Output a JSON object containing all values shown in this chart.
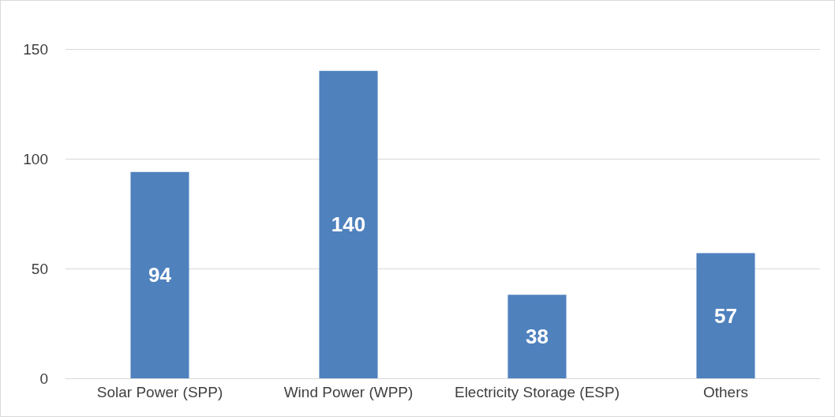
{
  "chart_data": {
    "type": "bar",
    "categories": [
      "Solar Power (SPP)",
      "Wind Power (WPP)",
      "Electricity Storage (ESP)",
      "Others"
    ],
    "values": [
      94,
      140,
      38,
      57
    ],
    "color": "#4f81bd",
    "ylim": [
      0,
      150
    ],
    "yticks": [
      0,
      50,
      100,
      150
    ],
    "grid": "y",
    "data_labels": true
  }
}
